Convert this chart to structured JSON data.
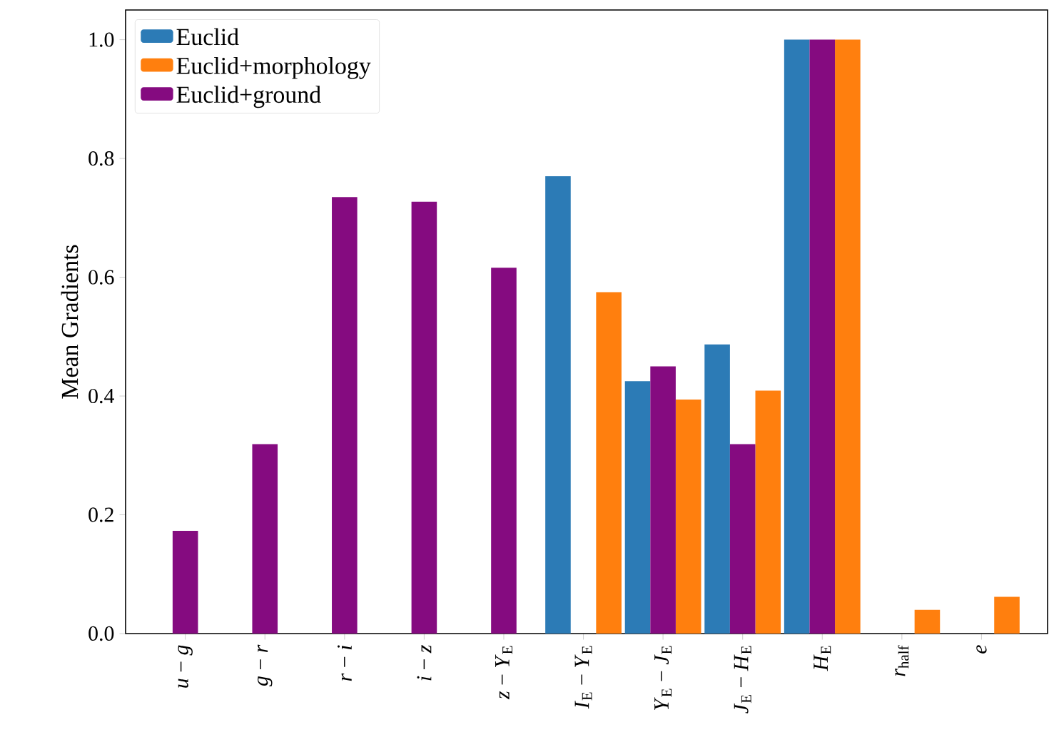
{
  "chart_data": {
    "type": "bar",
    "ylabel": "Mean Gradients",
    "categories": [
      "*u* − *g*",
      "*g* − *r*",
      "*r* − *i*",
      "*i* − *z*",
      "*z* − *Y*$_{E}$",
      "*I*$_{E}$ − *Y*$_{E}$",
      "*Y*$_{E}$ − *J*$_{E}$",
      "*J*$_{E}$ − *H*$_{E}$",
      "*H*$_{E}$",
      "*r*$_{half}$",
      "*e*"
    ],
    "series": [
      {
        "name": "Euclid",
        "color": "#2c7bb6",
        "values": [
          null,
          null,
          null,
          null,
          null,
          0.77,
          0.425,
          0.487,
          1.0,
          null,
          null
        ]
      },
      {
        "name": "Euclid+morphology",
        "color": "#ff7f0e",
        "values": [
          null,
          null,
          null,
          null,
          null,
          0.575,
          0.394,
          0.409,
          1.0,
          0.04,
          0.062
        ]
      },
      {
        "name": "Euclid+ground",
        "color": "#850b80",
        "values": [
          0.173,
          0.319,
          0.735,
          0.727,
          0.616,
          null,
          0.45,
          0.319,
          1.0,
          null,
          null
        ]
      }
    ],
    "ylim": [
      0,
      1.05
    ],
    "yticks": [
      {
        "value": 0,
        "label": "0.0"
      },
      {
        "value": 0.2,
        "label": "0.2"
      },
      {
        "value": 0.4,
        "label": "0.4"
      },
      {
        "value": 0.6,
        "label": "0.6"
      },
      {
        "value": 0.8,
        "label": "0.8"
      },
      {
        "value": 1.0,
        "label": "1.0"
      }
    ],
    "legend": "top left"
  }
}
